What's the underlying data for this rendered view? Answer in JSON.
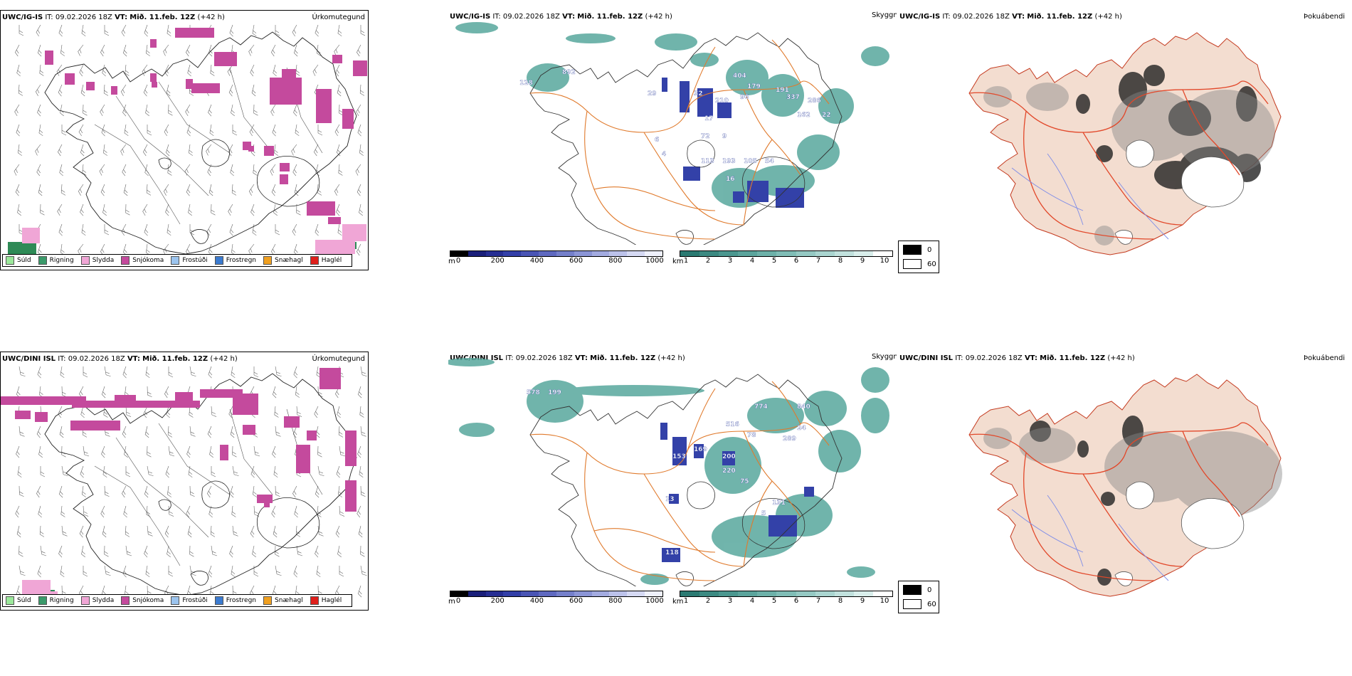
{
  "colors": {
    "snow": "#c44a9d",
    "drizzle_green": "#2e8a56",
    "teal_cloud": "#58a89d",
    "blue_cloud": "#3341a8",
    "road_orange": "#e07a2c",
    "land_peach": "#f3ddd0",
    "river_blue": "#7d8ce8",
    "road_red": "#e2482a"
  },
  "rows": [
    {
      "precip": {
        "model": "UWC/IG-IS",
        "it_label": "IT:",
        "it_value": "09.02.2026 18Z",
        "vt_label": "VT:",
        "vt_value": "Mið. 11.feb. 12Z",
        "lead": "(+42 h)",
        "variable": "Úrkomutegund"
      },
      "cloud": {
        "model": "UWC/IG-IS",
        "it_label": "IT:",
        "it_value": "09.02.2026 18Z",
        "vt_label": "VT:",
        "vt_value": "Mið. 11.feb. 12Z",
        "lead": "(+42 h)",
        "variable": "Skyggni",
        "labels": [
          "128",
          "892",
          "29",
          "32",
          "210",
          "17",
          "96",
          "404",
          "179",
          "191",
          "337",
          "286",
          "22",
          "162",
          "113",
          "193",
          "105",
          "54",
          "16",
          "72",
          "9",
          "6",
          "4"
        ]
      },
      "fog": {
        "model": "UWC/IG-IS",
        "it_label": "IT:",
        "it_value": "09.02.2026 18Z",
        "vt_label": "VT:",
        "vt_value": "Mið. 11.feb. 12Z",
        "lead": "(+42 h)",
        "variable": "Þokuábendi"
      }
    },
    {
      "precip": {
        "model": "UWC/DINI ISL",
        "it_label": "IT:",
        "it_value": "09.02.2026 18Z",
        "vt_label": "VT:",
        "vt_value": "Mið. 11.feb. 12Z",
        "lead": "(+42 h)",
        "variable": "Úrkomutegund"
      },
      "cloud": {
        "model": "UWC/DINI ISL",
        "it_label": "IT:",
        "it_value": "09.02.2026 18Z",
        "vt_label": "VT:",
        "vt_value": "Mið. 11.feb. 12Z",
        "lead": "(+42 h)",
        "variable": "Skyggni",
        "labels": [
          "578",
          "199",
          "774",
          "840",
          "516",
          "78",
          "24",
          "289",
          "153",
          "169",
          "200",
          "220",
          "75",
          "13",
          "131",
          "118",
          "5"
        ]
      },
      "fog": {
        "model": "UWC/DINI ISL",
        "it_label": "IT:",
        "it_value": "09.02.2026 18Z",
        "vt_label": "VT:",
        "vt_value": "Mið. 11.feb. 12Z",
        "lead": "(+42 h)",
        "variable": "Þokuábendi"
      }
    }
  ],
  "ptype_legend": [
    {
      "label": "Súld",
      "color": "#9be89b"
    },
    {
      "label": "Rigning",
      "color": "#3a9a6a"
    },
    {
      "label": "Slydda",
      "color": "#f0a6d6"
    },
    {
      "label": "Snjókoma",
      "color": "#c44a9d"
    },
    {
      "label": "Frostúði",
      "color": "#9cc4ee"
    },
    {
      "label": "Frostregn",
      "color": "#3b7bd0"
    },
    {
      "label": "Snæhagl",
      "color": "#f0a020"
    },
    {
      "label": "Haglél",
      "color": "#e0201c"
    }
  ],
  "ceiling_scale": {
    "unit": "m",
    "ticks": [
      "0",
      "200",
      "400",
      "600",
      "800",
      "1000"
    ],
    "colors": [
      "#000000",
      "#1a1f7a",
      "#262e93",
      "#333fa8",
      "#4a55b5",
      "#5f69c0",
      "#7580cb",
      "#8b95d6",
      "#a3abe0",
      "#bcc2ea",
      "#d5d9f3",
      "#eef0fb"
    ]
  },
  "visibility_scale": {
    "unit": "km",
    "ticks": [
      "1",
      "2",
      "3",
      "4",
      "5",
      "6",
      "7",
      "8",
      "9",
      "10"
    ],
    "colors": [
      "#2b7a72",
      "#3c8a82",
      "#4b978f",
      "#5ba49c",
      "#6db1a9",
      "#80bdb6",
      "#95c9c3",
      "#aad5d0",
      "#c1e1dd",
      "#d9eeeb",
      "#ffffff"
    ]
  },
  "fog_legend": {
    "items": [
      {
        "label": "0",
        "color": "#000000"
      },
      {
        "label": "60",
        "color": "#ffffff"
      }
    ]
  }
}
